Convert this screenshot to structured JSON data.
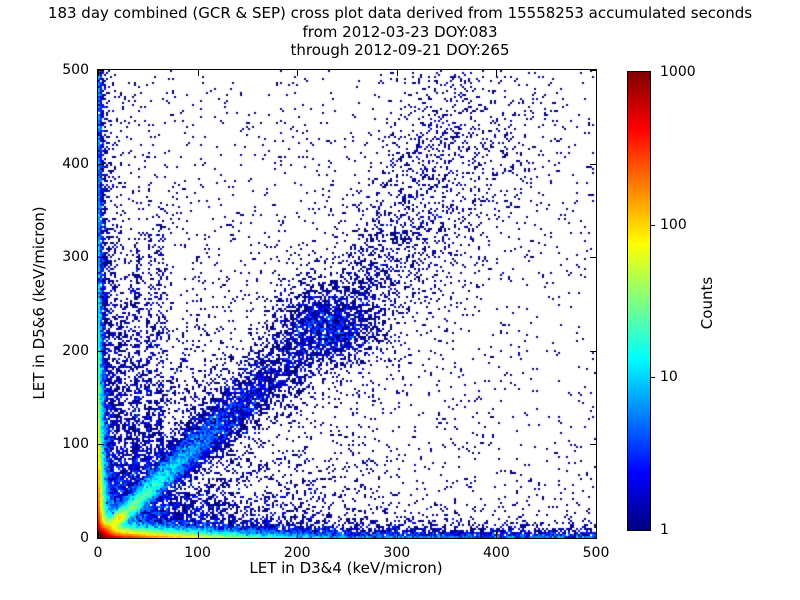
{
  "figure": {
    "title_line1": "183 day combined (GCR & SEP) cross plot data derived from 15558253 accumulated seconds",
    "title_line2": "from 2012-03-23 DOY:083",
    "title_line3": "through 2012-09-21 DOY:265",
    "background_color": "#ffffff"
  },
  "chart_data": {
    "type": "heatmap",
    "title": "183 day combined (GCR & SEP) cross plot data derived from 15558253 accumulated seconds from 2012-03-23 DOY:083 through 2012-09-21 DOY:265",
    "duration_days": 183,
    "accumulated_seconds": 15558253,
    "date_start": "2012-03-23",
    "doy_start": "083",
    "date_end": "2012-09-21",
    "doy_end": "265",
    "xlabel": "LET in D3&4 (keV/micron)",
    "ylabel": "LET in D5&6 (keV/micron)",
    "xlim": [
      0,
      500
    ],
    "ylim": [
      0,
      500
    ],
    "xticks": [
      0,
      100,
      200,
      300,
      400,
      500
    ],
    "yticks": [
      0,
      100,
      200,
      300,
      400,
      500
    ],
    "grid": false,
    "legend": "none",
    "colorbar": {
      "label": "Counts",
      "scale": "log",
      "min": 1,
      "max": 1000,
      "ticks": [
        1,
        10,
        100,
        1000
      ],
      "colormap": "jet",
      "color_min": "#000080",
      "color_max": "#800000"
    },
    "bin_units": 2,
    "seed": 20120323,
    "density_components": [
      {
        "name": "origin-hotspot",
        "kind": "exp2d",
        "n": 15000,
        "sx": 6,
        "sy": 6
      },
      {
        "name": "bottom-edge-band",
        "kind": "bandx",
        "n": 26000,
        "xs": 45,
        "ys": 3.5
      },
      {
        "name": "bottom-strip",
        "kind": "unibandx",
        "n": 2600,
        "ys": 4
      },
      {
        "name": "bottom-halo",
        "kind": "bandx",
        "n": 2800,
        "xs": 120,
        "ys": 15
      },
      {
        "name": "left-edge-band",
        "kind": "bandy",
        "n": 14000,
        "ys": 60,
        "xs": 2.2
      },
      {
        "name": "left-strip",
        "kind": "unibandy",
        "n": 2000,
        "xs": 2.2
      },
      {
        "name": "left-halo",
        "kind": "bandy",
        "n": 3000,
        "ys": 130,
        "xs": 14
      },
      {
        "name": "main-diagonal",
        "kind": "diag",
        "n": 11000,
        "ts": 110,
        "w0": 2,
        "wg": 0.05
      },
      {
        "name": "diagonal-halo",
        "kind": "diag",
        "n": 2500,
        "ts": 150,
        "w0": 6,
        "wg": 0.12
      },
      {
        "name": "diagonal-knot",
        "kind": "gauss",
        "n": 800,
        "x0": 22,
        "y0": 22,
        "sx": 3,
        "sy": 3
      },
      {
        "name": "diagonal-cluster",
        "kind": "gauss",
        "n": 1600,
        "x0": 232,
        "y0": 226,
        "sx": 26,
        "sy": 22
      },
      {
        "name": "upper-fan-a",
        "kind": "line",
        "n": 800,
        "x0": 270,
        "y0": 270,
        "x1": 365,
        "y1": 495,
        "w": 26,
        "pow": 1
      },
      {
        "name": "upper-fan-b",
        "kind": "line",
        "n": 350,
        "x0": 300,
        "y0": 250,
        "x1": 430,
        "y1": 470,
        "w": 30,
        "pow": 1
      },
      {
        "name": "lower-left-cloud",
        "kind": "exp2d",
        "n": 2600,
        "sx": 160,
        "sy": 160
      },
      {
        "name": "uniform-background",
        "kind": "uni",
        "n": 1300
      },
      {
        "name": "vertical-streak-a",
        "kind": "line",
        "n": 350,
        "x0": 38,
        "y0": 30,
        "x1": 40,
        "y1": 310,
        "w": 2,
        "pow": 2
      },
      {
        "name": "vertical-streak-b",
        "kind": "line",
        "n": 300,
        "x0": 50,
        "y0": 45,
        "x1": 52,
        "y1": 330,
        "w": 2,
        "pow": 2
      },
      {
        "name": "vertical-streak-c",
        "kind": "line",
        "n": 280,
        "x0": 62,
        "y0": 55,
        "x1": 64,
        "y1": 350,
        "w": 2.5,
        "pow": 2
      },
      {
        "name": "steep-ray-a",
        "kind": "line",
        "n": 280,
        "x0": 0,
        "y0": 0,
        "x1": 95,
        "y1": 210,
        "w": 3,
        "pow": 2
      },
      {
        "name": "steep-ray-b",
        "kind": "line",
        "n": 220,
        "x0": 0,
        "y0": 0,
        "x1": 60,
        "y1": 230,
        "w": 3,
        "pow": 2
      },
      {
        "name": "steep-ray-c",
        "kind": "line",
        "n": 170,
        "x0": 0,
        "y0": 0,
        "x1": 35,
        "y1": 260,
        "w": 4,
        "pow": 2
      },
      {
        "name": "shallow-ray-a",
        "kind": "line",
        "n": 240,
        "x0": 0,
        "y0": 0,
        "x1": 210,
        "y1": 95,
        "w": 3,
        "pow": 2
      },
      {
        "name": "shallow-ray-b",
        "kind": "line",
        "n": 150,
        "x0": 0,
        "y0": 0,
        "x1": 230,
        "y1": 60,
        "w": 4,
        "pow": 2
      },
      {
        "name": "horizontal-streak-a",
        "kind": "line",
        "n": 160,
        "x0": 35,
        "y0": 33,
        "x1": 130,
        "y1": 34,
        "w": 2,
        "pow": 2
      },
      {
        "name": "horizontal-streak-b",
        "kind": "line",
        "n": 120,
        "x0": 45,
        "y0": 44,
        "x1": 120,
        "y1": 45,
        "w": 2,
        "pow": 2
      }
    ]
  }
}
